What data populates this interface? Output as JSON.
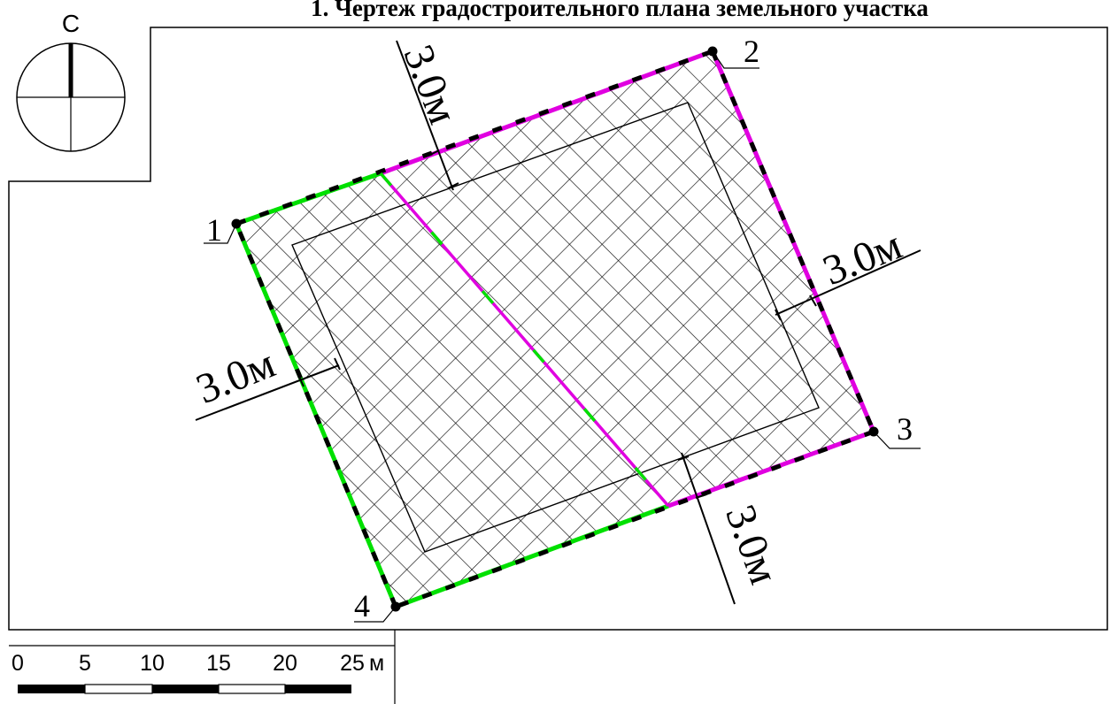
{
  "title": "1. Чертеж градостроительного плана земельного участка",
  "north_arrow": {
    "letter": "С",
    "icon": "north-arrow-icon"
  },
  "points": {
    "p1": "1",
    "p2": "2",
    "p3": "3",
    "p4": "4"
  },
  "setbacks": {
    "top": "3.0м",
    "right": "3.0м",
    "left": "3.0м",
    "bottom": "3.0м"
  },
  "scale_bar": {
    "ticks": [
      "0",
      "5",
      "10",
      "15",
      "20",
      "25"
    ],
    "unit": "м"
  },
  "colors": {
    "boundary_green": "#00e000",
    "boundary_magenta": "#e000e0",
    "dash": "#000000",
    "hatch": "#000000",
    "frame": "#000000"
  }
}
